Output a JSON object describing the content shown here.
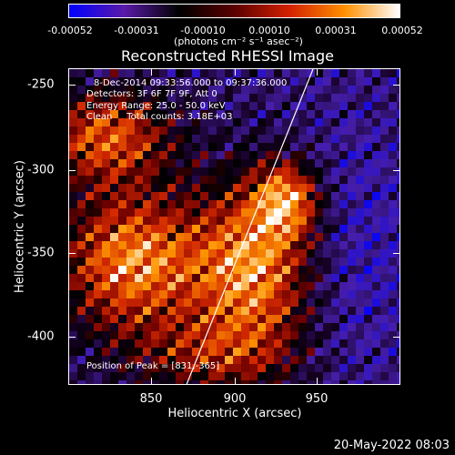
{
  "colorbar": {
    "ticks": [
      "-0.00052",
      "-0.00031",
      "-0.00010",
      "0.00010",
      "0.00031",
      "0.00052"
    ],
    "unit_label": "(photons cm⁻² s⁻¹ asec⁻²)",
    "colors": [
      "#0000ff",
      "#5a1aa8",
      "#000000",
      "#5a0000",
      "#d42000",
      "#ff9000",
      "#ffffff"
    ]
  },
  "title": "Reconstructed RHESSI Image",
  "annotations": {
    "time_range": "8-Dec-2014 09:33:56.000 to 09:37:36.000",
    "detectors": "Detectors: 3F 6F 7F 9F, Att 0",
    "energy": "Energy Range: 25.0 - 50.0 keV",
    "method": "Clean     Total counts: 3.18E+03",
    "peak": "Position of Peak = [831,-365]"
  },
  "axes": {
    "x_label": "Heliocentric X (arcsec)",
    "y_label": "Heliocentric Y (arcsec)",
    "x_ticks": [
      "850",
      "900",
      "950"
    ],
    "y_ticks": [
      "-250",
      "-300",
      "-350",
      "-400"
    ],
    "x_range": [
      802,
      993
    ],
    "y_range": [
      -430,
      -240
    ]
  },
  "limb_line": {
    "x_start": 870,
    "y_start": -430,
    "x_end": 943,
    "y_end": -240
  },
  "footer_date": "20-May-2022 08:03"
}
